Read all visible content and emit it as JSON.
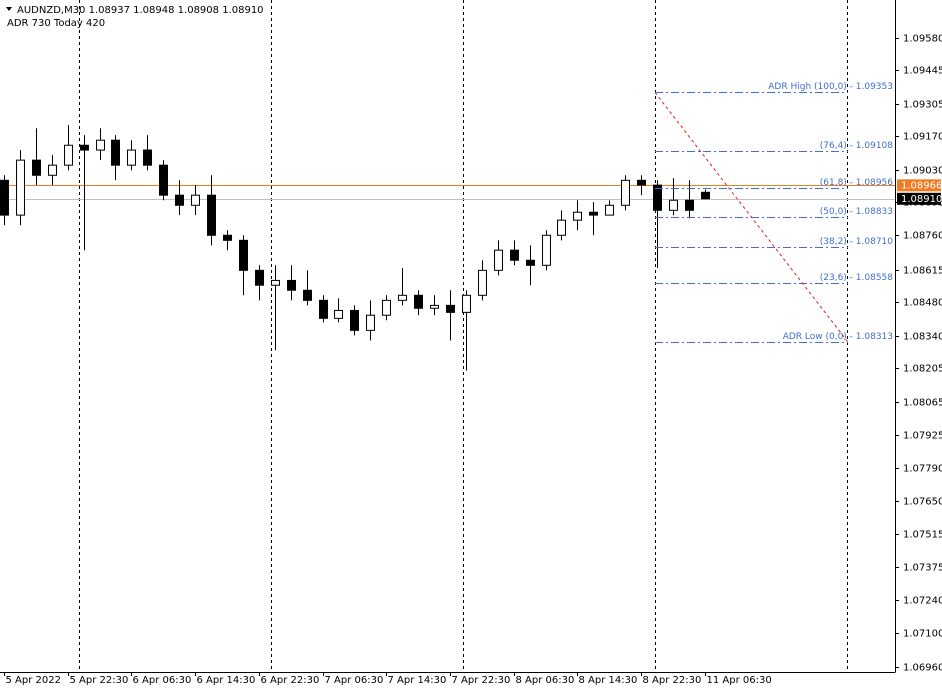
{
  "chart_data": {
    "type": "candlestick",
    "header": "AUDNZD,M30  1.08937 1.08948 1.08908 1.08910",
    "indicator": "ADR 730  Today 420",
    "x": [
      0,
      4,
      8,
      12,
      16,
      20,
      24,
      28,
      32,
      36,
      40,
      44,
      48,
      52,
      56,
      60,
      64,
      68,
      72,
      76,
      80,
      84,
      88,
      92,
      96,
      100,
      104,
      108,
      112,
      116,
      120,
      124,
      128,
      132,
      136,
      140,
      144,
      148,
      152,
      156,
      160,
      164,
      168,
      172,
      176
    ],
    "open": [
      1.08987,
      1.08842,
      1.09071,
      1.09008,
      1.0905,
      1.09133,
      1.09113,
      1.09154,
      1.0905,
      1.09113,
      1.0905,
      1.08925,
      1.08883,
      1.08925,
      1.08758,
      1.08737,
      1.08612,
      1.0855,
      1.0857,
      1.08529,
      1.08487,
      1.08412,
      1.08445,
      1.08362,
      1.08425,
      1.08487,
      1.08508,
      1.08454,
      1.08466,
      1.08437,
      1.08508,
      1.08612,
      1.08696,
      1.08654,
      1.08633,
      1.08758,
      1.08821,
      1.08854,
      1.08842,
      1.08883,
      1.08987,
      1.08967,
      1.08862,
      1.08904,
      1.08937
    ],
    "high": [
      1.09008,
      1.09113,
      1.09204,
      1.09092,
      1.09217,
      1.09175,
      1.09204,
      1.09175,
      1.09154,
      1.09175,
      1.09071,
      1.08987,
      1.08967,
      1.09008,
      1.08779,
      1.08758,
      1.08633,
      1.08633,
      1.08633,
      1.08612,
      1.08508,
      1.08495,
      1.08466,
      1.08487,
      1.08508,
      1.08621,
      1.08529,
      1.08508,
      1.08529,
      1.08529,
      1.08654,
      1.08737,
      1.08737,
      1.08716,
      1.08779,
      1.08862,
      1.08904,
      1.08896,
      1.08904,
      1.09008,
      1.09008,
      1.08987,
      1.08996,
      1.08987,
      1.08948
    ],
    "low": [
      1.088,
      1.088,
      1.08967,
      1.08967,
      1.09029,
      1.08696,
      1.09071,
      1.08987,
      1.09029,
      1.09029,
      1.08904,
      1.08842,
      1.08842,
      1.08716,
      1.08696,
      1.08508,
      1.08487,
      1.08279,
      1.08487,
      1.08466,
      1.08395,
      1.08395,
      1.08341,
      1.0832,
      1.08404,
      1.08466,
      1.08425,
      1.08425,
      1.0832,
      1.08195,
      1.08487,
      1.08591,
      1.08633,
      1.0855,
      1.08612,
      1.08737,
      1.08779,
      1.08758,
      1.08842,
      1.08862,
      1.08925,
      1.08621,
      1.08842,
      1.08829,
      1.08908
    ],
    "close": [
      1.08842,
      1.09071,
      1.09008,
      1.0905,
      1.09133,
      1.09113,
      1.09154,
      1.0905,
      1.09113,
      1.0905,
      1.08925,
      1.08883,
      1.08925,
      1.08758,
      1.08737,
      1.08612,
      1.0855,
      1.0857,
      1.08529,
      1.08487,
      1.08412,
      1.08445,
      1.08362,
      1.08425,
      1.08487,
      1.08508,
      1.08454,
      1.08466,
      1.08437,
      1.08508,
      1.08612,
      1.08696,
      1.08654,
      1.08633,
      1.08758,
      1.08821,
      1.08854,
      1.08842,
      1.08883,
      1.08987,
      1.08967,
      1.08862,
      1.08904,
      1.08862,
      1.0891
    ],
    "up_color": "#ffffff",
    "down_color": "#000000",
    "xlim": [
      -1,
      223.75
    ],
    "xticks": [
      {
        "value": 0,
        "label": "5 Apr 2022"
      },
      {
        "value": 16,
        "label": "5 Apr 22:30"
      },
      {
        "value": 32,
        "label": "6 Apr 06:30"
      },
      {
        "value": 48,
        "label": "6 Apr 14:30"
      },
      {
        "value": 64,
        "label": "6 Apr 22:30"
      },
      {
        "value": 80,
        "label": "7 Apr 06:30"
      },
      {
        "value": 96,
        "label": "7 Apr 14:30"
      },
      {
        "value": 112,
        "label": "7 Apr 22:30"
      },
      {
        "value": 128,
        "label": "8 Apr 06:30"
      },
      {
        "value": 144,
        "label": "8 Apr 14:30"
      },
      {
        "value": 160,
        "label": "8 Apr 22:30"
      },
      {
        "value": 176,
        "label": "11 Apr 06:30"
      }
    ],
    "ylim": [
      1.06939,
      1.09738
    ],
    "yticks": [
      {
        "value": 1.0958,
        "label": "1.09580"
      },
      1.09445,
      1.09305,
      {
        "value": 1.0917,
        "label": "1.09170"
      },
      {
        "value": 1.0903,
        "label": "1.09030"
      },
      1.08895,
      {
        "value": 1.0876,
        "label": "1.08760"
      },
      1.08615,
      {
        "value": 1.0848,
        "label": "1.08480"
      },
      {
        "value": 1.0834,
        "label": "1.08340"
      },
      1.08205,
      1.08065,
      1.07925,
      {
        "value": 1.0779,
        "label": "1.07790"
      },
      {
        "value": 1.0765,
        "label": "1.07650"
      },
      1.07515,
      1.07375,
      {
        "value": 1.0724,
        "label": "1.07240"
      },
      {
        "value": 1.071,
        "label": "1.07100"
      },
      {
        "value": 1.0696,
        "label": "1.06960"
      }
    ],
    "price_lines": [
      {
        "value": 1.08966,
        "label": "1.08966",
        "color": "#f07b22",
        "line_color": "#f07b22"
      },
      {
        "value": 1.0891,
        "label": "1.08910",
        "color": "#000000",
        "line_color": "#c0c0c0"
      }
    ],
    "fib_levels": [
      {
        "value": 1.09353,
        "label": "ADR High (100,0)  -  1.09353"
      },
      {
        "value": 1.09108,
        "label": "(76,4)  -  1.09108"
      },
      {
        "value": 1.08956,
        "label": "(61,8)  -  1.08956"
      },
      {
        "value": 1.08833,
        "label": "(50,0)  -  1.08833"
      },
      {
        "value": 1.0871,
        "label": "(38,2)  -  1.08710"
      },
      {
        "value": 1.08558,
        "label": "(23,6)  -  1.08558"
      },
      {
        "value": 1.08313,
        "label": "ADR Low (0,0)  -  1.08313"
      }
    ],
    "fib_color": "#3f6fd0"
  }
}
